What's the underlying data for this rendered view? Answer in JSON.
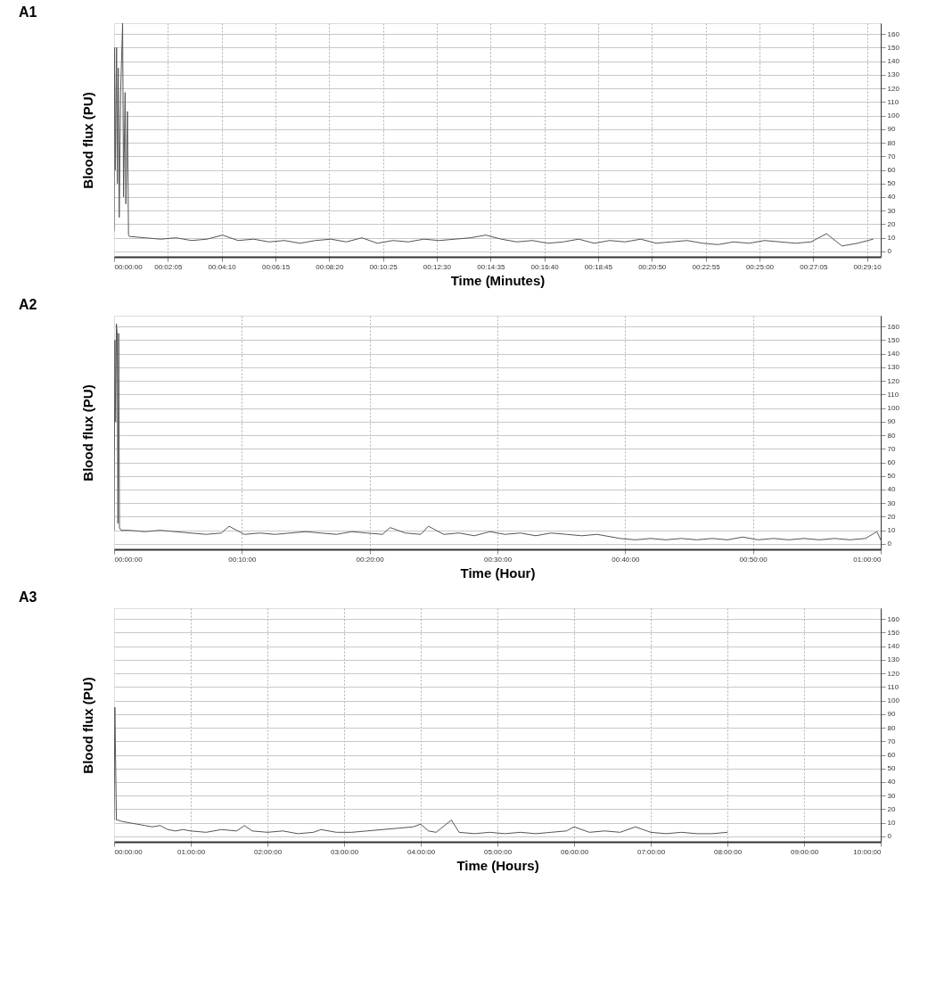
{
  "chart_data": [
    {
      "type": "line",
      "title": "A1",
      "xlabel": "Time (Minutes)",
      "ylabel": "Blood flux (PU)",
      "grid": true,
      "xlim": [
        0,
        0.495
      ],
      "ylim": [
        -4,
        168
      ],
      "xticks": [
        {
          "value": 0,
          "label": "00:00:00"
        },
        {
          "value": 0.0347,
          "label": "00:02:05"
        },
        {
          "value": 0.0694,
          "label": "00:04:10"
        },
        {
          "value": 0.1042,
          "label": "00:06:15"
        },
        {
          "value": 0.1389,
          "label": "00:08:20"
        },
        {
          "value": 0.1736,
          "label": "00:10:25"
        },
        {
          "value": 0.2083,
          "label": "00:12:30"
        },
        {
          "value": 0.2431,
          "label": "00:14:35"
        },
        {
          "value": 0.2778,
          "label": "00:16:40"
        },
        {
          "value": 0.3125,
          "label": "00:18:45"
        },
        {
          "value": 0.3472,
          "label": "00:20:50"
        },
        {
          "value": 0.3819,
          "label": "00:22:55"
        },
        {
          "value": 0.4167,
          "label": "00:25:00"
        },
        {
          "value": 0.4514,
          "label": "00:27:05"
        },
        {
          "value": 0.4861,
          "label": "00:29:10"
        }
      ],
      "yticks": [
        0,
        10,
        20,
        30,
        40,
        50,
        60,
        70,
        80,
        90,
        100,
        110,
        120,
        130,
        140,
        150,
        160
      ],
      "series": [
        {
          "color": "#555555",
          "x": [
            0,
            0.0003,
            0.0008,
            0.0016,
            0.0021,
            0.0027,
            0.0033,
            0.0042,
            0.0055,
            0.0061,
            0.0071,
            0.0076,
            0.0086,
            0.0093,
            0.0098,
            0.01,
            0.02,
            0.03,
            0.04,
            0.05,
            0.06,
            0.07,
            0.08,
            0.09,
            0.1,
            0.11,
            0.12,
            0.13,
            0.14,
            0.15,
            0.16,
            0.17,
            0.18,
            0.19,
            0.2,
            0.21,
            0.22,
            0.23,
            0.24,
            0.25,
            0.26,
            0.27,
            0.28,
            0.29,
            0.3,
            0.31,
            0.32,
            0.33,
            0.34,
            0.35,
            0.36,
            0.37,
            0.38,
            0.39,
            0.4,
            0.41,
            0.42,
            0.43,
            0.44,
            0.45,
            0.46,
            0.47,
            0.48,
            0.49
          ],
          "values": [
            15,
            150,
            60,
            150,
            50,
            135,
            25,
            117,
            168,
            40,
            117,
            35,
            103,
            12,
            11,
            11,
            10,
            9,
            10,
            8,
            9,
            12,
            8,
            9,
            7,
            8,
            6,
            8,
            9,
            7,
            10,
            6,
            8,
            7,
            9,
            8,
            9,
            10,
            12,
            9,
            7,
            8,
            6,
            7,
            9,
            6,
            8,
            7,
            9,
            6,
            7,
            8,
            6,
            5,
            7,
            6,
            8,
            7,
            6,
            7,
            13,
            4,
            6,
            9
          ]
        }
      ]
    },
    {
      "type": "line",
      "title": "A2",
      "xlabel": "Time (Hour)",
      "ylabel": "Blood flux (PU)",
      "grid": true,
      "xlim": [
        0,
        1
      ],
      "ylim": [
        -4,
        168
      ],
      "xticks": [
        {
          "value": 0,
          "label": "00:00:00"
        },
        {
          "value": 0.1667,
          "label": "00:10:00"
        },
        {
          "value": 0.3333,
          "label": "00:20:00"
        },
        {
          "value": 0.5,
          "label": "00:30:00"
        },
        {
          "value": 0.6667,
          "label": "00:40:00"
        },
        {
          "value": 0.8333,
          "label": "00:50:00"
        },
        {
          "value": 1,
          "label": "01:00:00"
        }
      ],
      "yticks": [
        0,
        10,
        20,
        30,
        40,
        50,
        60,
        70,
        80,
        90,
        100,
        110,
        120,
        130,
        140,
        150,
        160
      ],
      "series": [
        {
          "color": "#555555",
          "x": [
            0,
            0.001,
            0.002,
            0.003,
            0.004,
            0.005,
            0.006,
            0.007,
            0.009,
            0.02,
            0.04,
            0.06,
            0.08,
            0.1,
            0.12,
            0.14,
            0.15,
            0.17,
            0.19,
            0.21,
            0.23,
            0.25,
            0.27,
            0.29,
            0.31,
            0.33,
            0.35,
            0.36,
            0.38,
            0.4,
            0.41,
            0.43,
            0.45,
            0.47,
            0.49,
            0.51,
            0.53,
            0.55,
            0.57,
            0.59,
            0.61,
            0.63,
            0.65,
            0.66,
            0.68,
            0.7,
            0.72,
            0.74,
            0.76,
            0.78,
            0.8,
            0.82,
            0.84,
            0.86,
            0.88,
            0.9,
            0.92,
            0.94,
            0.96,
            0.98,
            0.995,
            1
          ],
          "values": [
            10,
            150,
            90,
            162,
            155,
            15,
            155,
            12,
            10,
            10,
            9,
            10,
            9,
            8,
            7,
            8,
            13,
            7,
            8,
            7,
            8,
            9,
            8,
            7,
            9,
            8,
            7,
            12,
            8,
            7,
            13,
            7,
            8,
            6,
            9,
            7,
            8,
            6,
            8,
            7,
            6,
            7,
            5,
            4,
            3,
            4,
            3,
            4,
            3,
            4,
            3,
            5,
            3,
            4,
            3,
            4,
            3,
            4,
            3,
            4,
            9,
            3
          ]
        }
      ]
    },
    {
      "type": "line",
      "title": "A3",
      "xlabel": "Time (Hours)",
      "ylabel": "Blood flux (PU)",
      "grid": true,
      "xlim": [
        0,
        10
      ],
      "ylim": [
        -4,
        168
      ],
      "xticks": [
        {
          "value": 0,
          "label": "00:00:00"
        },
        {
          "value": 1,
          "label": "01:00:00"
        },
        {
          "value": 2,
          "label": "02:00:00"
        },
        {
          "value": 3,
          "label": "03:00:00"
        },
        {
          "value": 4,
          "label": "04:00:00"
        },
        {
          "value": 5,
          "label": "05:00:00"
        },
        {
          "value": 6,
          "label": "06:00:00"
        },
        {
          "value": 7,
          "label": "07:00:00"
        },
        {
          "value": 8,
          "label": "08:00:00"
        },
        {
          "value": 9,
          "label": "09:00:00"
        },
        {
          "value": 10,
          "label": "10:00:00"
        }
      ],
      "yticks": [
        0,
        10,
        20,
        30,
        40,
        50,
        60,
        70,
        80,
        90,
        100,
        110,
        120,
        130,
        140,
        150,
        160
      ],
      "series": [
        {
          "color": "#555555",
          "x": [
            0,
            0.01,
            0.03,
            0.05,
            0.1,
            0.2,
            0.3,
            0.4,
            0.5,
            0.6,
            0.7,
            0.8,
            0.9,
            1.0,
            1.2,
            1.4,
            1.6,
            1.7,
            1.8,
            2.0,
            2.2,
            2.4,
            2.6,
            2.7,
            2.9,
            3.1,
            3.3,
            3.5,
            3.7,
            3.9,
            4.0,
            4.1,
            4.2,
            4.4,
            4.5,
            4.7,
            4.9,
            5.1,
            5.3,
            5.5,
            5.7,
            5.9,
            6.0,
            6.2,
            6.4,
            6.6,
            6.8,
            7.0,
            7.2,
            7.4,
            7.6,
            7.8,
            8.0
          ],
          "values": [
            12,
            95,
            12,
            12,
            11,
            10,
            9,
            8,
            7,
            8,
            5,
            4,
            5,
            4,
            3,
            5,
            4,
            8,
            4,
            3,
            4,
            2,
            3,
            5,
            3,
            3,
            4,
            5,
            6,
            7,
            9,
            4,
            3,
            12,
            3,
            2,
            3,
            2,
            3,
            2,
            3,
            4,
            7,
            3,
            4,
            3,
            7,
            3,
            2,
            3,
            2,
            2,
            3
          ]
        }
      ]
    }
  ]
}
